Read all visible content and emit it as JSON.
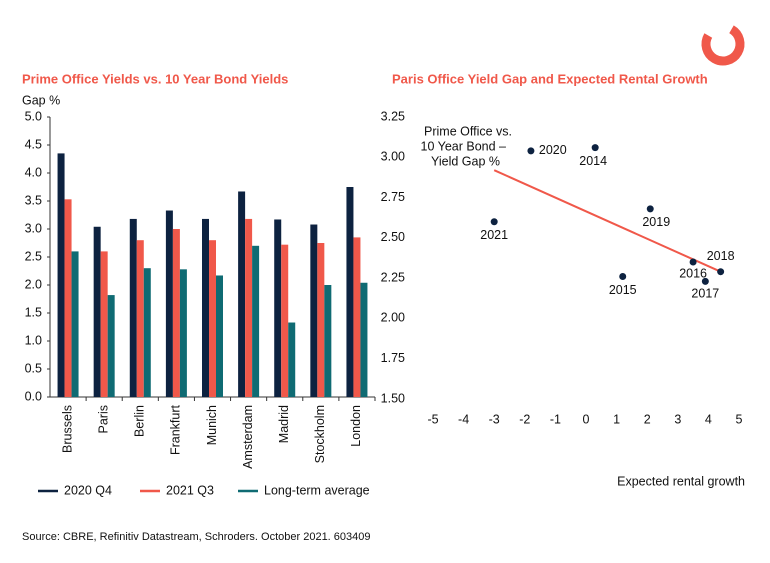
{
  "chart_data": [
    {
      "type": "bar",
      "title": "Prime Office Yields vs. 10 Year Bond Yields",
      "y_label": "Gap %",
      "categories": [
        "Brussels",
        "Paris",
        "Berlin",
        "Frankfurt",
        "Munich",
        "Amsterdam",
        "Madrid",
        "Stockholm",
        "London"
      ],
      "series": [
        {
          "name": "2020 Q4",
          "color": "#0d2240",
          "values": [
            4.35,
            3.04,
            3.18,
            3.33,
            3.18,
            3.67,
            3.17,
            3.08,
            3.75
          ]
        },
        {
          "name": "2021 Q3",
          "color": "#f0584a",
          "values": [
            3.53,
            2.6,
            2.8,
            3.0,
            2.8,
            3.18,
            2.72,
            2.75,
            2.85
          ]
        },
        {
          "name": "Long-term average",
          "color": "#0f6b73",
          "values": [
            2.6,
            1.82,
            2.3,
            2.28,
            2.17,
            2.7,
            1.33,
            2.0,
            2.04
          ]
        }
      ],
      "ylim": [
        0,
        5
      ],
      "yticks": [
        {
          "value": 0,
          "label": "0.0"
        },
        {
          "value": 0.5,
          "label": "0.5"
        },
        {
          "value": 1,
          "label": "1.0"
        },
        {
          "value": 1.5,
          "label": "1.5"
        },
        {
          "value": 2,
          "label": "2.0"
        },
        {
          "value": 2.5,
          "label": "2.5"
        },
        {
          "value": 3,
          "label": "3.0"
        },
        {
          "value": 3.5,
          "label": "3.5"
        },
        {
          "value": 4,
          "label": "4.0"
        },
        {
          "value": 4.5,
          "label": "4.5"
        },
        {
          "value": 5,
          "label": "5.0"
        }
      ],
      "legend": "bottom"
    },
    {
      "type": "scatter",
      "title": "Paris Office Yield Gap and Expected Rental Growth",
      "x_label": "Expected rental growth",
      "annotation": [
        "Prime Office vs.",
        "10 Year Bond –",
        "Yield Gap %"
      ],
      "labels": [
        "2020",
        "2014",
        "2021",
        "2019",
        "2015",
        "2016",
        "2018",
        "2017"
      ],
      "x": [
        -1.8,
        0.3,
        -3.0,
        2.1,
        1.2,
        3.5,
        4.4,
        3.9
      ],
      "values": [
        3.04,
        3.06,
        2.6,
        2.68,
        2.26,
        2.35,
        2.29,
        2.23
      ],
      "color": "#0d2240",
      "trendline": {
        "x": [
          -3.0,
          4.4
        ],
        "y": [
          2.92,
          2.29
        ],
        "color": "#f0584a"
      },
      "xlim": [
        -5,
        5
      ],
      "xticks": [
        -5,
        -4,
        -3,
        -2,
        -1,
        0,
        1,
        2,
        3,
        4,
        5
      ],
      "ylim": [
        1.5,
        3.25
      ],
      "yticks": [
        {
          "value": 1.5,
          "label": "1.50"
        },
        {
          "value": 1.75,
          "label": "1.75"
        },
        {
          "value": 2,
          "label": "2.00"
        },
        {
          "value": 2.25,
          "label": "2.25"
        },
        {
          "value": 2.5,
          "label": "2.50"
        },
        {
          "value": 2.75,
          "label": "2.75"
        },
        {
          "value": 3,
          "label": "3.00"
        },
        {
          "value": 3.25,
          "label": "3.25"
        }
      ]
    }
  ],
  "source": "Source: CBRE, Refinitiv Datastream, Schroders. October 2021. 603409"
}
